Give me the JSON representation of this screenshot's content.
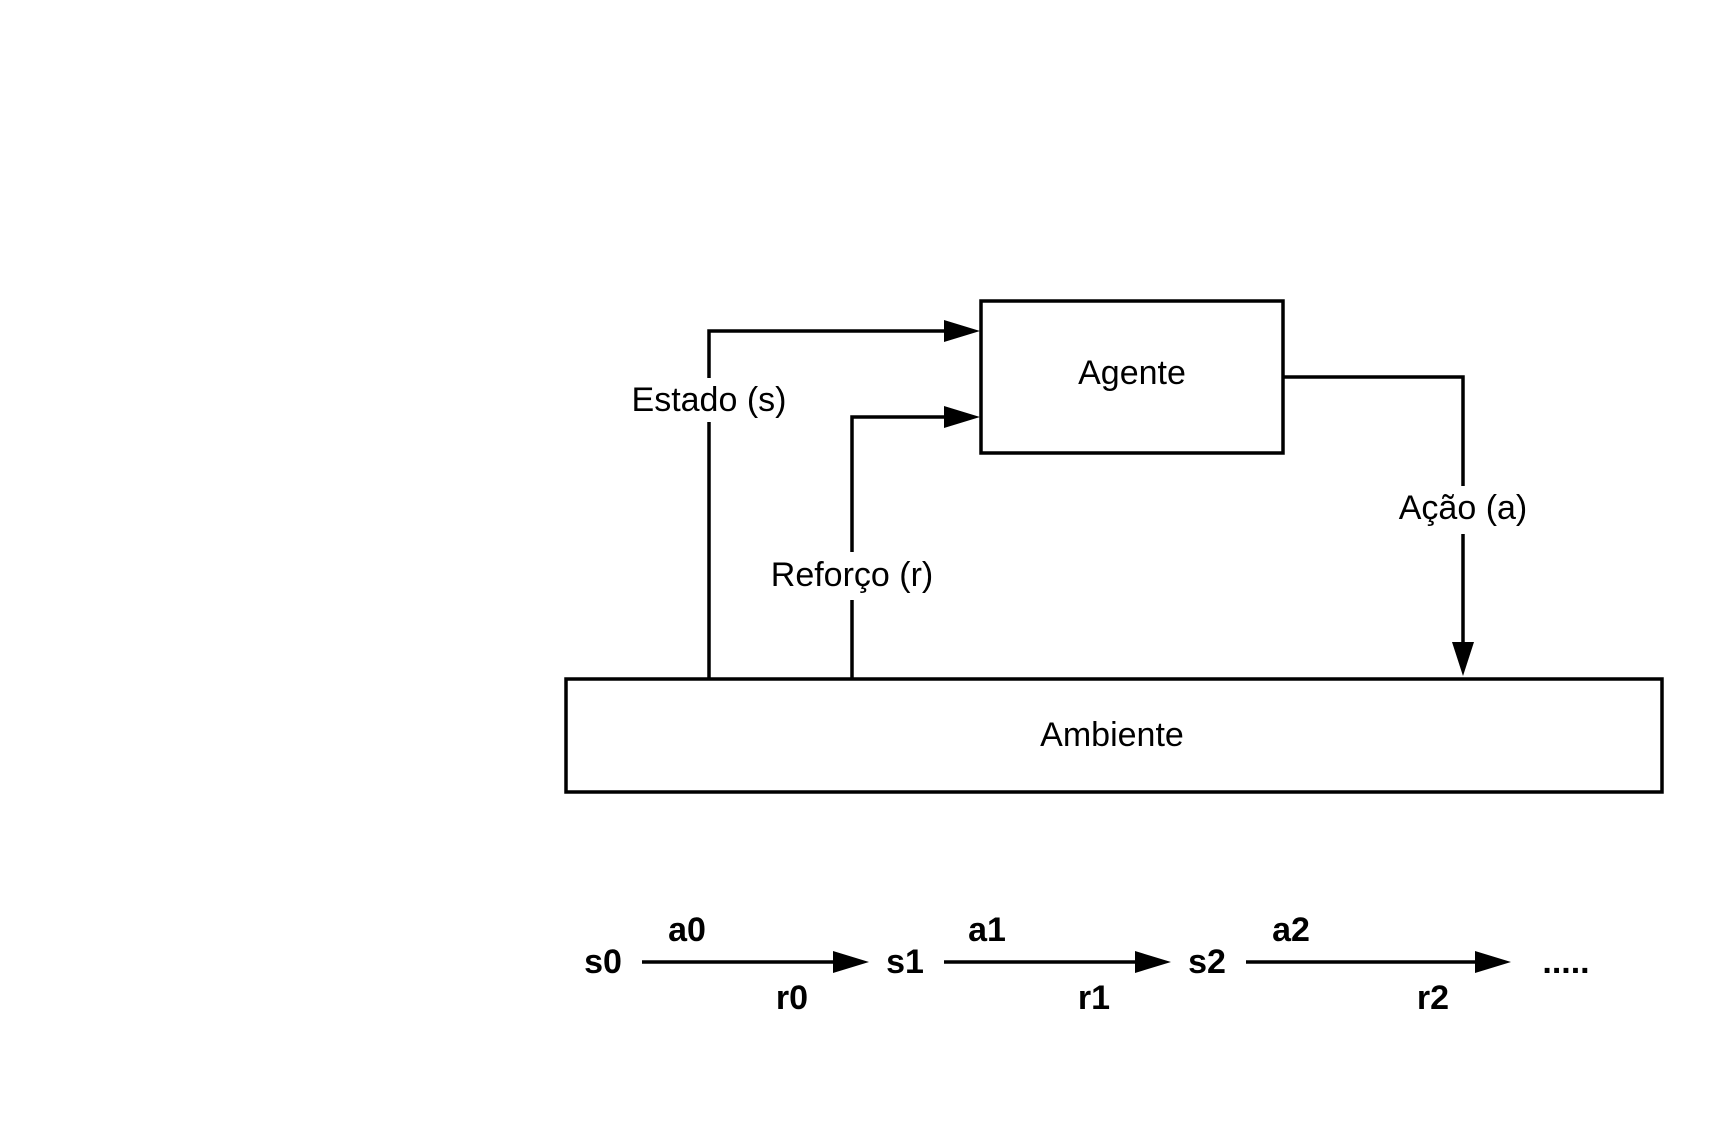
{
  "nodes": {
    "agent": "Agente",
    "environment": "Ambiente"
  },
  "edges": {
    "state": "Estado (s)",
    "reward": "Reforço (r)",
    "action": "Ação (a)"
  },
  "sequence": {
    "states": [
      "s0",
      "s1",
      "s2"
    ],
    "actions": [
      "a0",
      "a1",
      "a2"
    ],
    "rewards": [
      "r0",
      "r1",
      "r2"
    ],
    "continuation": "....."
  }
}
